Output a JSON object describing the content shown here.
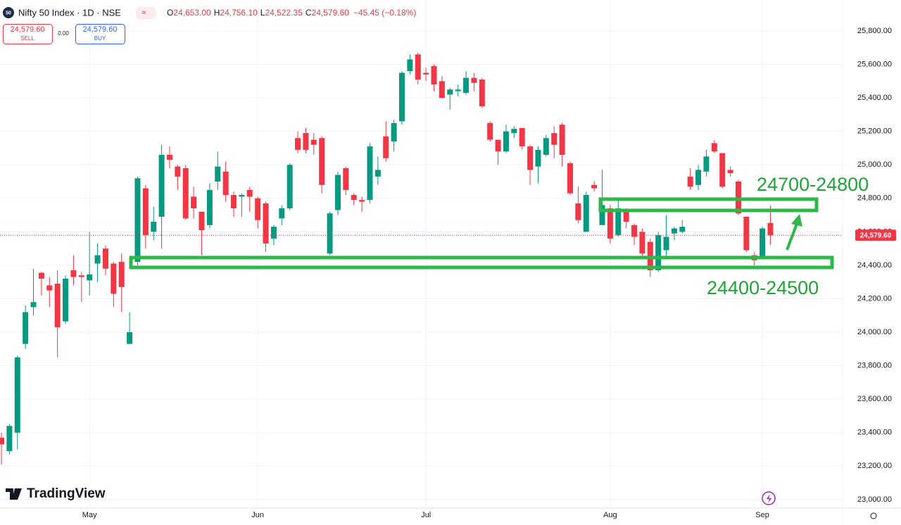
{
  "header": {
    "badge": "50",
    "symbol": "Nifty 50 Index · 1D · NSE",
    "open_label": "O",
    "open": "24,653.00",
    "high_label": "H",
    "high": "24,756.10",
    "low_label": "L",
    "low": "24,522.35",
    "close_label": "C",
    "close": "24,579.60",
    "change": "−45.45 (−0.18%)"
  },
  "trade": {
    "sell_price": "24,579.60",
    "sell": "SELL",
    "spread": "0.00",
    "buy_price": "24,579.60",
    "buy": "BUY"
  },
  "brand": "TradingView",
  "chart_data": {
    "type": "candlestick",
    "categories": [
      null,
      null,
      null,
      null,
      null,
      null,
      null,
      null,
      null,
      null,
      null,
      "May",
      null,
      null,
      null,
      null,
      null,
      null,
      null,
      null,
      null,
      null,
      null,
      null,
      null,
      null,
      null,
      null,
      null,
      null,
      null,
      null,
      "Jun",
      null,
      null,
      null,
      null,
      null,
      null,
      null,
      null,
      null,
      null,
      null,
      null,
      null,
      null,
      null,
      null,
      null,
      null,
      null,
      null,
      "Jul",
      null,
      null,
      null,
      null,
      null,
      null,
      null,
      null,
      null,
      null,
      null,
      null,
      null,
      null,
      null,
      null,
      null,
      null,
      null,
      null,
      null,
      null,
      "Aug",
      null,
      null,
      null,
      null,
      null,
      null,
      null,
      null,
      null,
      null,
      null,
      null,
      null,
      null,
      null,
      null,
      null,
      null,
      "Sep",
      null
    ],
    "open": [
      23370,
      23290,
      23400,
      23930,
      24150,
      24355,
      24280,
      24290,
      24065,
      24370,
      24340,
      24310,
      24410,
      24500,
      24410,
      24420,
      23930,
      24420,
      24860,
      24600,
      24690,
      25060,
      24990,
      24980,
      24810,
      24720,
      24640,
      24900,
      24960,
      24820,
      24810,
      24850,
      24800,
      24770,
      24560,
      24680,
      24740,
      25160,
      25190,
      25150,
      25160,
      24470,
      24730,
      24980,
      24820,
      24790,
      24790,
      24930,
      25170,
      25140,
      25260,
      25560,
      25660,
      25550,
      25590,
      25500,
      25420,
      25440,
      25430,
      25520,
      25510,
      25250,
      25150,
      25080,
      25190,
      25220,
      25110,
      24990,
      25060,
      25190,
      25240,
      25010,
      24770,
      24600,
      24880,
      24640,
      24740,
      24580,
      24730,
      24640,
      24600,
      24540,
      24370,
      24490,
      24590,
      24600,
      24930,
      24880,
      24960,
      25130,
      25070,
      24970,
      24900,
      24690,
      24460,
      24450,
      24653
    ],
    "high": [
      23400,
      23450,
      23860,
      24160,
      24380,
      24360,
      24330,
      24370,
      24340,
      24460,
      24360,
      24600,
      24530,
      24520,
      24420,
      24470,
      24120,
      24930,
      24880,
      24750,
      25120,
      25110,
      25000,
      25000,
      24870,
      24720,
      24890,
      25080,
      25020,
      24840,
      24830,
      24870,
      24810,
      24780,
      24640,
      24760,
      25010,
      25200,
      25220,
      25190,
      25170,
      24720,
      24960,
      24990,
      24830,
      24810,
      25130,
      25050,
      25260,
      25270,
      25560,
      25660,
      25670,
      25580,
      25600,
      25530,
      25460,
      25480,
      25560,
      25550,
      25520,
      25260,
      25150,
      25240,
      25230,
      25220,
      25120,
      25110,
      25180,
      25230,
      25250,
      25020,
      24870,
      24840,
      24900,
      24970,
      24760,
      24790,
      24740,
      24650,
      24620,
      24560,
      24600,
      24700,
      24630,
      24670,
      24980,
      25000,
      25090,
      25150,
      25070,
      24990,
      24910,
      24690,
      24480,
      24630,
      24756.1
    ],
    "low": [
      23210,
      23270,
      23300,
      23900,
      24100,
      24220,
      24150,
      23850,
      24050,
      24280,
      24180,
      24220,
      24300,
      24340,
      24150,
      24120,
      23930,
      24400,
      24500,
      24550,
      24500,
      24980,
      24850,
      24670,
      24680,
      24460,
      24620,
      24850,
      24780,
      24690,
      24690,
      24720,
      24620,
      24480,
      24520,
      24640,
      24730,
      25070,
      25070,
      25060,
      24830,
      24460,
      24700,
      24820,
      24760,
      24720,
      24770,
      24880,
      25020,
      25080,
      25240,
      25540,
      25480,
      25500,
      25440,
      25400,
      25330,
      25410,
      25420,
      25440,
      25340,
      25140,
      25000,
      25070,
      25160,
      25090,
      24880,
      24890,
      25050,
      25040,
      24990,
      24820,
      24650,
      24600,
      24840,
      24640,
      24530,
      24570,
      24620,
      24520,
      24440,
      24330,
      24360,
      24440,
      24550,
      24590,
      24850,
      24850,
      24930,
      25070,
      24860,
      24930,
      24700,
      24480,
      24400,
      24440,
      24522.35
    ],
    "close": [
      23330,
      23440,
      23850,
      24120,
      24180,
      24320,
      24250,
      24030,
      24320,
      24330,
      24330,
      24345,
      24460,
      24380,
      24230,
      24270,
      24000,
      24920,
      24580,
      24660,
      25060,
      25030,
      24930,
      24680,
      24740,
      24610,
      24850,
      24990,
      24820,
      24740,
      24820,
      24810,
      24670,
      24530,
      24630,
      24740,
      25000,
      25090,
      25090,
      25120,
      24880,
      24710,
      24940,
      24850,
      24790,
      24780,
      25110,
      24970,
      25040,
      25250,
      25550,
      25630,
      25510,
      25540,
      25480,
      25400,
      25450,
      25450,
      25520,
      25490,
      25350,
      25150,
      25080,
      25200,
      25215,
      25110,
      24970,
      25090,
      25160,
      25120,
      25060,
      24830,
      24670,
      24820,
      24860,
      24760,
      24560,
      24740,
      24660,
      24570,
      24470,
      24370,
      24580,
      24570,
      24620,
      24630,
      24870,
      24970,
      25050,
      25080,
      24870,
      24950,
      24710,
      24490,
      24430,
      24620,
      24579.6
    ],
    "up_color": "#089981",
    "down_color": "#f23645",
    "ylim": [
      22949,
      25985
    ],
    "yticks": [
      {
        "value": 23000,
        "label": "23,000.00"
      },
      {
        "value": 23200,
        "label": "23,200.00"
      },
      {
        "value": 23400,
        "label": "23,400.00"
      },
      {
        "value": 23600,
        "label": "23,600.00"
      },
      {
        "value": 23800,
        "label": "23,800.00"
      },
      {
        "value": 24000,
        "label": "24,000.00"
      },
      {
        "value": 24200,
        "label": "24,200.00"
      },
      {
        "value": 24400,
        "label": "24,400.00"
      },
      {
        "value": 24600,
        "label": "24,600.00"
      },
      {
        "value": 24800,
        "label": "24,800.00"
      },
      {
        "value": 25000,
        "label": "25,000.00"
      },
      {
        "value": 25200,
        "label": "25,200.00"
      },
      {
        "value": 25400,
        "label": "25,400.00"
      },
      {
        "value": 25600,
        "label": "25,600.00"
      },
      {
        "value": 25800,
        "label": "25,800.00"
      }
    ],
    "grid": true,
    "last_price_label": "24,579.60",
    "annotations": [
      "24700-24800",
      "24400-24500"
    ]
  }
}
